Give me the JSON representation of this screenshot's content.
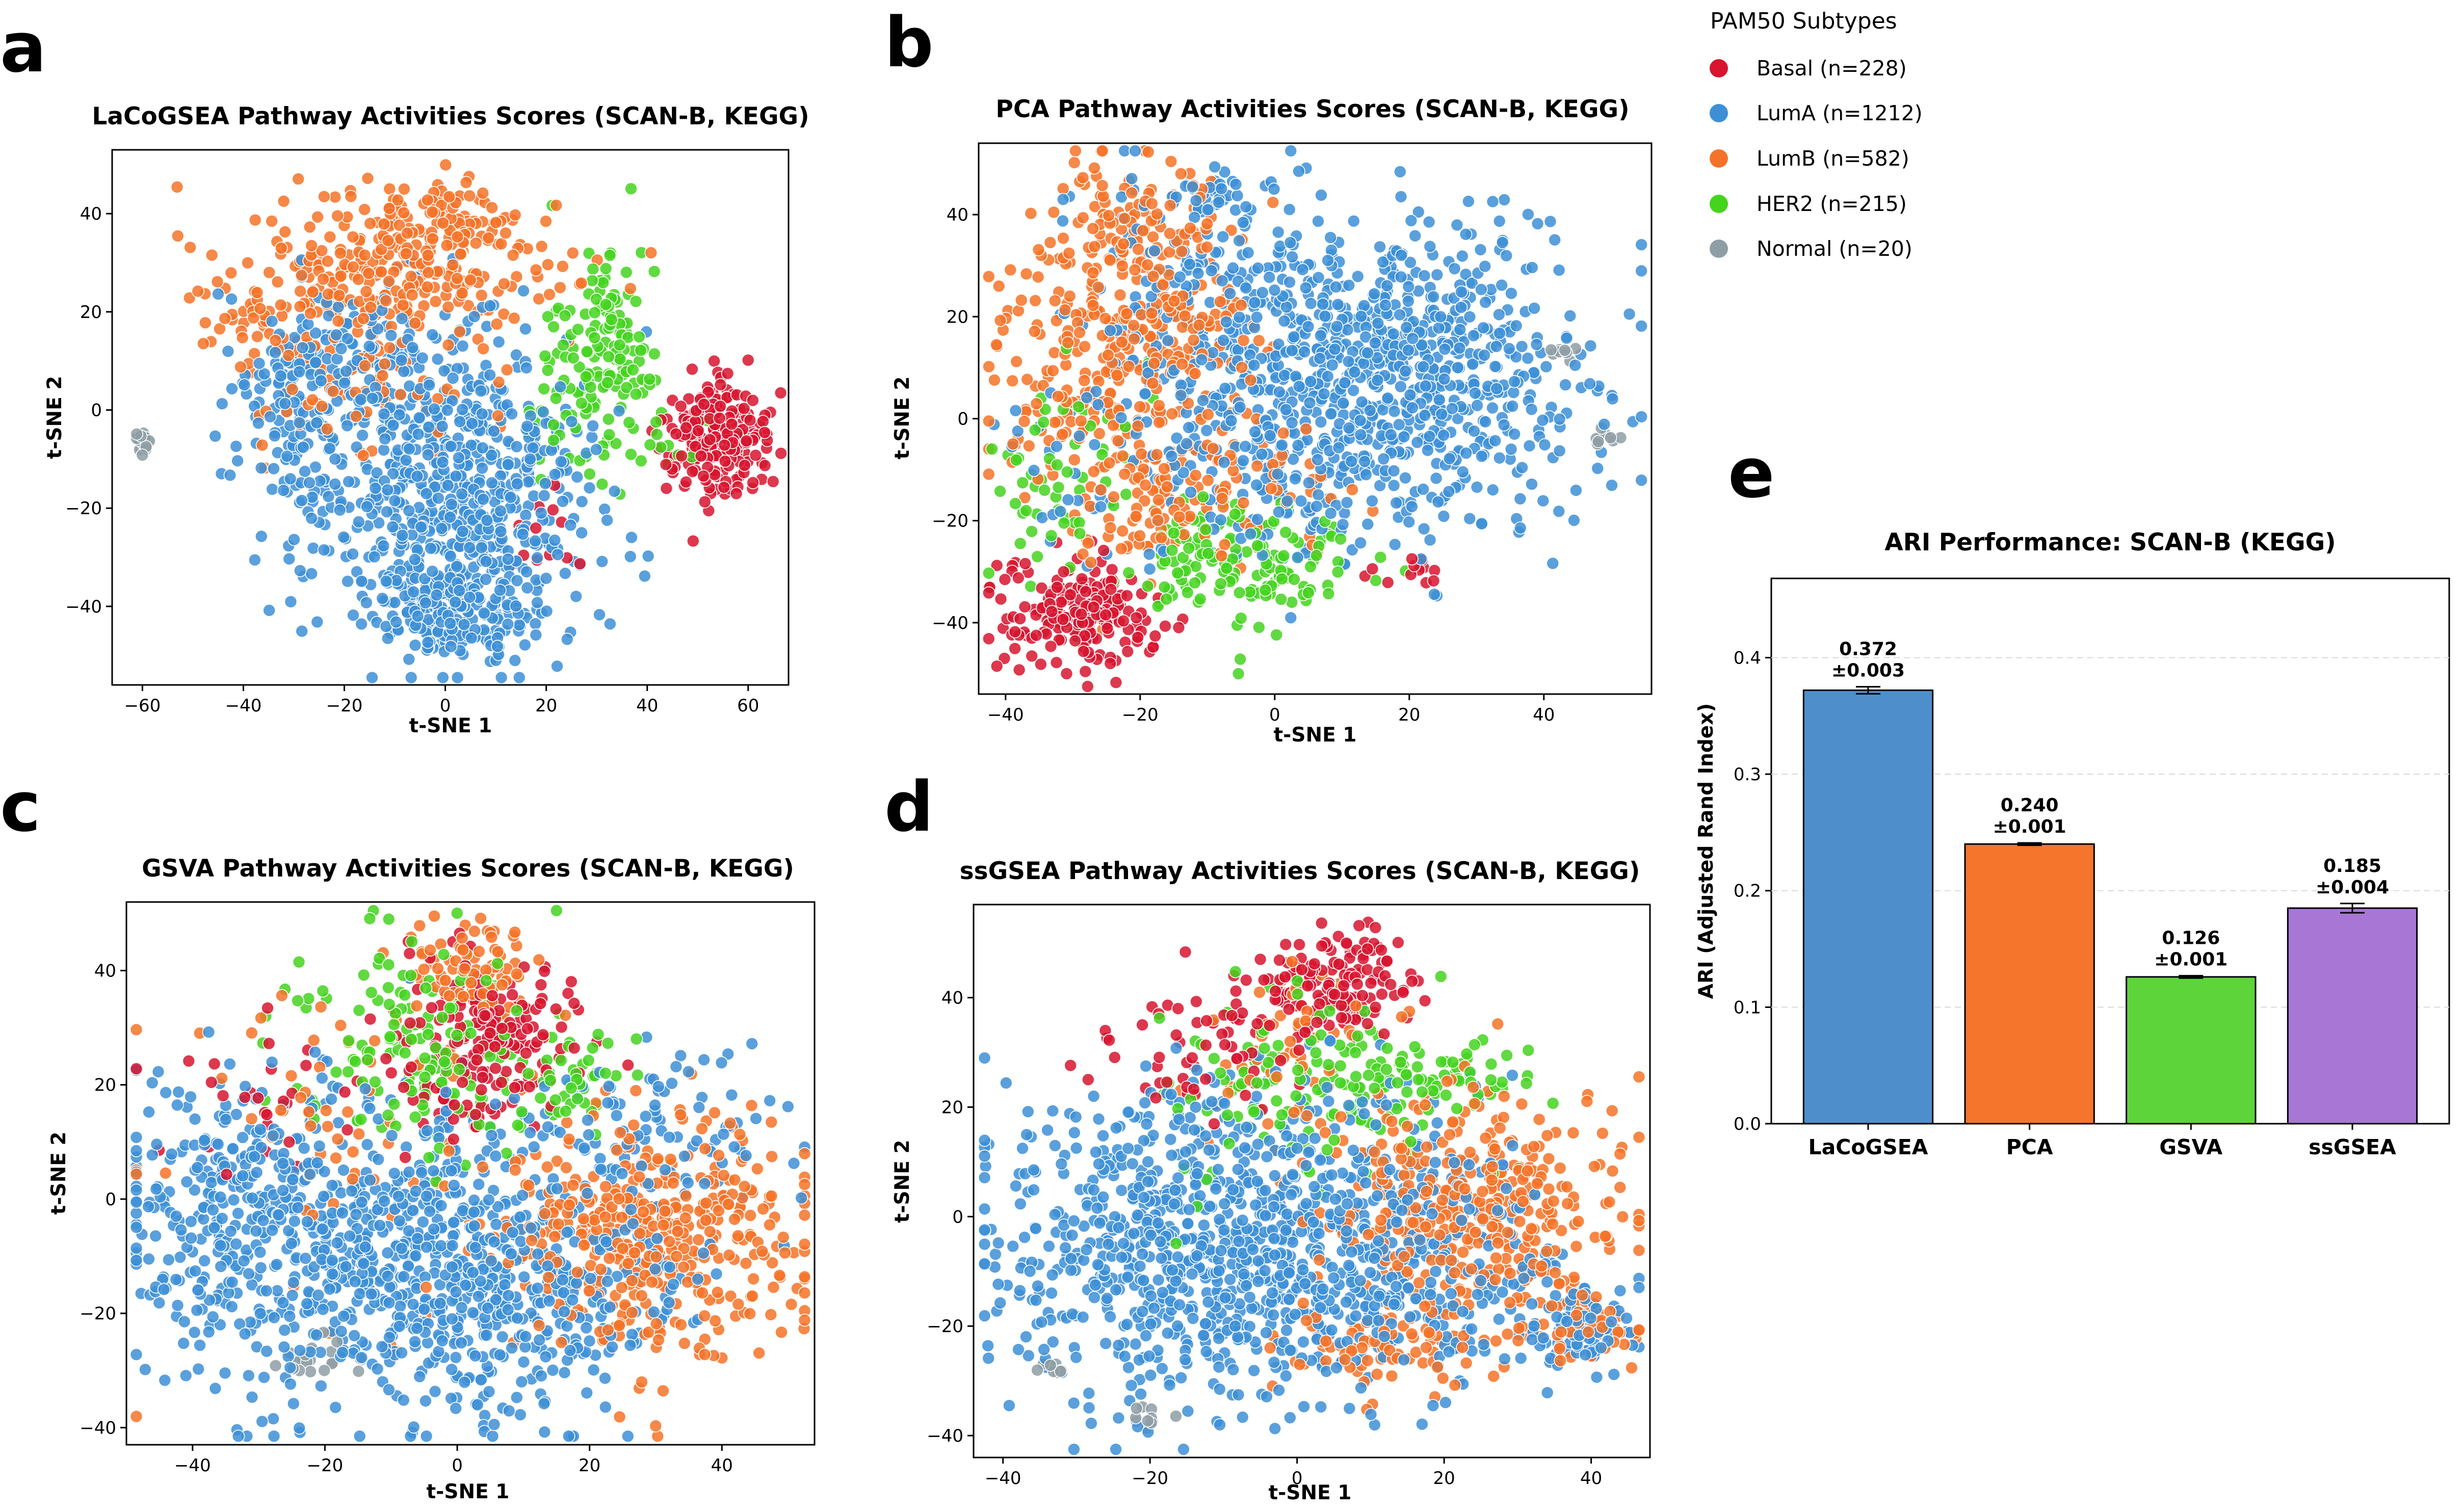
{
  "legend": {
    "title": "PAM50 Subtypes",
    "items": [
      {
        "name": "Basal",
        "label": "Basal (n=228)",
        "color": "#d7152f"
      },
      {
        "name": "LumA",
        "label": "LumA (n=1212)",
        "color": "#3d8fd6"
      },
      {
        "name": "LumB",
        "label": "LumB (n=582)",
        "color": "#f47328"
      },
      {
        "name": "HER2",
        "label": "HER2 (n=215)",
        "color": "#44d41e"
      },
      {
        "name": "Normal",
        "label": "Normal (n=20)",
        "color": "#8e9ea4"
      }
    ]
  },
  "chart_data": [
    {
      "id": "a",
      "letter": "a",
      "type": "scatter",
      "title": "LaCoGSEA Pathway Activities Scores (SCAN-B, KEGG)",
      "xlabel": "t-SNE 1",
      "ylabel": "t-SNE 2",
      "xlim": [
        -66,
        68
      ],
      "ylim": [
        -56,
        53
      ],
      "xticks": [
        -60,
        -40,
        -20,
        0,
        20,
        40,
        60
      ],
      "yticks": [
        -40,
        -20,
        0,
        20,
        40
      ],
      "clusters": [
        {
          "group": "LumA",
          "x": 2,
          "y": -18,
          "sx": 14,
          "sy": 14,
          "n": 640
        },
        {
          "group": "LumA",
          "x": 2,
          "y": -42,
          "sx": 8,
          "sy": 5,
          "n": 160
        },
        {
          "group": "LumA",
          "x": -30,
          "y": -2,
          "sx": 8,
          "sy": 12,
          "n": 120
        },
        {
          "group": "LumA",
          "x": -12,
          "y": 8,
          "sx": 12,
          "sy": 8,
          "n": 140
        },
        {
          "group": "LumB",
          "x": -10,
          "y": 28,
          "sx": 16,
          "sy": 7,
          "n": 290
        },
        {
          "group": "LumB",
          "x": -38,
          "y": 20,
          "sx": 5,
          "sy": 4,
          "n": 35
        },
        {
          "group": "LumB",
          "x": -2,
          "y": 40,
          "sx": 8,
          "sy": 5,
          "n": 80
        },
        {
          "group": "LumB",
          "x": -20,
          "y": 4,
          "sx": 12,
          "sy": 8,
          "n": 70
        },
        {
          "group": "HER2",
          "x": 30,
          "y": 12,
          "sx": 6,
          "sy": 9,
          "n": 140
        },
        {
          "group": "HER2",
          "x": 34,
          "y": -6,
          "sx": 8,
          "sy": 4,
          "n": 30
        },
        {
          "group": "Basal",
          "x": 54,
          "y": -6,
          "sx": 5,
          "sy": 6,
          "n": 210
        },
        {
          "group": "Basal",
          "x": 20,
          "y": -24,
          "sx": 6,
          "sy": 6,
          "n": 12
        },
        {
          "group": "Normal",
          "x": -60,
          "y": -7,
          "sx": 0.8,
          "sy": 1.2,
          "n": 20
        }
      ]
    },
    {
      "id": "b",
      "letter": "b",
      "type": "scatter",
      "title": "PCA Pathway Activities Scores (SCAN-B, KEGG)",
      "xlabel": "t-SNE 1",
      "ylabel": "t-SNE 2",
      "xlim": [
        -44,
        56
      ],
      "ylim": [
        -54,
        54
      ],
      "xticks": [
        -40,
        -20,
        0,
        20,
        40
      ],
      "yticks": [
        -40,
        -20,
        0,
        20,
        40
      ],
      "clusters": [
        {
          "group": "LumA",
          "x": 18,
          "y": 10,
          "sx": 14,
          "sy": 14,
          "n": 700
        },
        {
          "group": "LumA",
          "x": -8,
          "y": 20,
          "sx": 12,
          "sy": 14,
          "n": 220
        },
        {
          "group": "LumA",
          "x": 0,
          "y": -10,
          "sx": 16,
          "sy": 10,
          "n": 200
        },
        {
          "group": "LumA",
          "x": -10,
          "y": 44,
          "sx": 4,
          "sy": 3,
          "n": 30
        },
        {
          "group": "LumB",
          "x": -22,
          "y": 12,
          "sx": 10,
          "sy": 16,
          "n": 380
        },
        {
          "group": "LumB",
          "x": -12,
          "y": -16,
          "sx": 10,
          "sy": 6,
          "n": 120
        },
        {
          "group": "LumB",
          "x": -18,
          "y": 40,
          "sx": 6,
          "sy": 5,
          "n": 70
        },
        {
          "group": "HER2",
          "x": -5,
          "y": -28,
          "sx": 8,
          "sy": 6,
          "n": 150
        },
        {
          "group": "HER2",
          "x": -32,
          "y": -12,
          "sx": 5,
          "sy": 8,
          "n": 55
        },
        {
          "group": "Basal",
          "x": -30,
          "y": -38,
          "sx": 6,
          "sy": 5,
          "n": 210
        },
        {
          "group": "Basal",
          "x": 20,
          "y": -30,
          "sx": 3,
          "sy": 2,
          "n": 12
        },
        {
          "group": "Normal",
          "x": 43,
          "y": 13,
          "sx": 1,
          "sy": 1,
          "n": 8
        },
        {
          "group": "Normal",
          "x": 50,
          "y": -4,
          "sx": 1.2,
          "sy": 1,
          "n": 8
        }
      ]
    },
    {
      "id": "c",
      "letter": "c",
      "type": "scatter",
      "title": "GSVA Pathway Activities Scores (SCAN-B, KEGG)",
      "xlabel": "t-SNE 1",
      "ylabel": "t-SNE 2",
      "xlim": [
        -50,
        54
      ],
      "ylim": [
        -43,
        52
      ],
      "xticks": [
        -40,
        -20,
        0,
        20,
        40
      ],
      "yticks": [
        -40,
        -20,
        0,
        20,
        40
      ],
      "clusters": [
        {
          "group": "LumA",
          "x": -14,
          "y": -8,
          "sx": 18,
          "sy": 13,
          "n": 760
        },
        {
          "group": "LumA",
          "x": 10,
          "y": -20,
          "sx": 12,
          "sy": 10,
          "n": 250
        },
        {
          "group": "LumA",
          "x": 30,
          "y": 10,
          "sx": 10,
          "sy": 8,
          "n": 100
        },
        {
          "group": "LumA",
          "x": -36,
          "y": 4,
          "sx": 6,
          "sy": 10,
          "n": 100
        },
        {
          "group": "LumB",
          "x": 30,
          "y": -6,
          "sx": 12,
          "sy": 10,
          "n": 420
        },
        {
          "group": "LumB",
          "x": 2,
          "y": 40,
          "sx": 6,
          "sy": 4,
          "n": 80
        },
        {
          "group": "LumB",
          "x": -10,
          "y": 10,
          "sx": 20,
          "sy": 16,
          "n": 80
        },
        {
          "group": "HER2",
          "x": -5,
          "y": 26,
          "sx": 10,
          "sy": 10,
          "n": 160
        },
        {
          "group": "HER2",
          "x": 18,
          "y": 20,
          "sx": 4,
          "sy": 4,
          "n": 40
        },
        {
          "group": "Basal",
          "x": 5,
          "y": 28,
          "sx": 7,
          "sy": 7,
          "n": 190
        },
        {
          "group": "Basal",
          "x": -30,
          "y": 16,
          "sx": 10,
          "sy": 8,
          "n": 35
        },
        {
          "group": "Normal",
          "x": -22,
          "y": -29,
          "sx": 3,
          "sy": 2,
          "n": 20
        }
      ]
    },
    {
      "id": "d",
      "letter": "d",
      "type": "scatter",
      "title": "ssGSEA Pathway Activities Scores (SCAN-B, KEGG)",
      "xlabel": "t-SNE 1",
      "ylabel": "t-SNE 2",
      "xlim": [
        -44,
        48
      ],
      "ylim": [
        -44,
        57
      ],
      "xticks": [
        -40,
        -20,
        0,
        20,
        40
      ],
      "yticks": [
        -40,
        -20,
        0,
        20,
        40
      ],
      "clusters": [
        {
          "group": "LumA",
          "x": -14,
          "y": -6,
          "sx": 14,
          "sy": 14,
          "n": 720
        },
        {
          "group": "LumA",
          "x": 12,
          "y": -8,
          "sx": 12,
          "sy": 10,
          "n": 350
        },
        {
          "group": "LumA",
          "x": 38,
          "y": -20,
          "sx": 4,
          "sy": 4,
          "n": 80
        },
        {
          "group": "LumA",
          "x": -2,
          "y": 18,
          "sx": 12,
          "sy": 8,
          "n": 90
        },
        {
          "group": "LumB",
          "x": 24,
          "y": 2,
          "sx": 10,
          "sy": 10,
          "n": 380
        },
        {
          "group": "LumB",
          "x": 10,
          "y": -24,
          "sx": 8,
          "sy": 4,
          "n": 80
        },
        {
          "group": "LumB",
          "x": 40,
          "y": -20,
          "sx": 4,
          "sy": 4,
          "n": 60
        },
        {
          "group": "LumB",
          "x": 0,
          "y": 30,
          "sx": 8,
          "sy": 8,
          "n": 60
        },
        {
          "group": "HER2",
          "x": 2,
          "y": 24,
          "sx": 10,
          "sy": 8,
          "n": 150
        },
        {
          "group": "HER2",
          "x": 22,
          "y": 26,
          "sx": 6,
          "sy": 3,
          "n": 40
        },
        {
          "group": "Basal",
          "x": 5,
          "y": 42,
          "sx": 5,
          "sy": 5,
          "n": 160
        },
        {
          "group": "Basal",
          "x": -14,
          "y": 30,
          "sx": 8,
          "sy": 6,
          "n": 60
        },
        {
          "group": "Normal",
          "x": -20,
          "y": -37,
          "sx": 1.5,
          "sy": 1.2,
          "n": 12
        },
        {
          "group": "Normal",
          "x": -34,
          "y": -28,
          "sx": 1.2,
          "sy": 1,
          "n": 8
        }
      ]
    },
    {
      "id": "e",
      "letter": "e",
      "type": "bar",
      "title": "ARI Performance: SCAN-B (KEGG)",
      "xlabel": "",
      "ylabel": "ARI (Adjusted Rand Index)",
      "ylim": [
        0,
        0.468
      ],
      "yticks": [
        0.0,
        0.1,
        0.2,
        0.3,
        0.4
      ],
      "categories": [
        "LaCoGSEA",
        "PCA",
        "GSVA",
        "ssGSEA"
      ],
      "values": [
        0.372,
        0.24,
        0.126,
        0.185
      ],
      "errors": [
        0.003,
        0.001,
        0.001,
        0.004
      ],
      "value_labels": [
        "0.372",
        "0.240",
        "0.126",
        "0.185"
      ],
      "error_labels": [
        "±0.003",
        "±0.001",
        "±0.001",
        "±0.004"
      ],
      "colors": [
        "#4e8ecb",
        "#f5752c",
        "#5dd43a",
        "#a877d5"
      ],
      "grid": "horizontal dashed"
    }
  ]
}
